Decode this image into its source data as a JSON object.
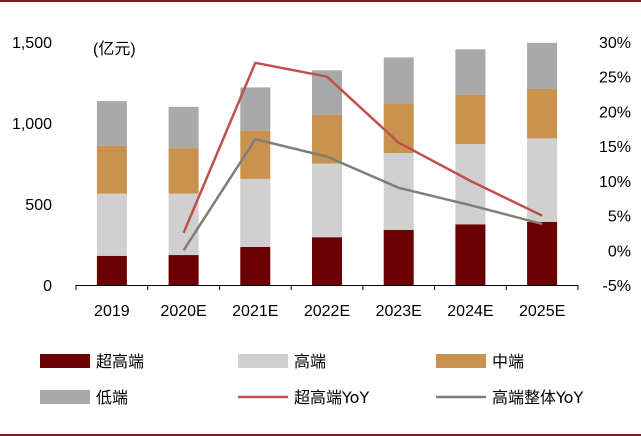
{
  "colors": {
    "frame": "#8b1a1a",
    "super_high": "#6b0000",
    "high": "#d0d0d0",
    "mid": "#c9924f",
    "low": "#a9a9a9",
    "super_high_yoy": "#c0504d",
    "high_total_yoy": "#7f7f74"
  },
  "chart_data": {
    "type": "bar",
    "stacked": true,
    "categories": [
      "2019",
      "2020E",
      "2021E",
      "2022E",
      "2023E",
      "2024E",
      "2025E"
    ],
    "unit_label": "(亿元)",
    "ylim": [
      0,
      1500
    ],
    "yticks": [
      0,
      500,
      1000,
      1500
    ],
    "ytick_labels": [
      "0",
      "500",
      "1,000",
      "1,500"
    ],
    "y2lim": [
      -5,
      30
    ],
    "y2ticks": [
      -5,
      0,
      5,
      10,
      15,
      20,
      25,
      30
    ],
    "y2tick_labels": [
      "-5%",
      "0%",
      "5%",
      "10%",
      "15%",
      "20%",
      "25%",
      "30%"
    ],
    "series": [
      {
        "key": "super_high",
        "name": "超高端",
        "axis": "left",
        "values": [
          180,
          185,
          235,
          295,
          340,
          375,
          390
        ]
      },
      {
        "key": "high",
        "name": "高端",
        "axis": "left",
        "values": [
          385,
          380,
          420,
          455,
          475,
          495,
          515
        ]
      },
      {
        "key": "mid",
        "name": "中端",
        "axis": "left",
        "values": [
          295,
          280,
          300,
          300,
          305,
          305,
          305
        ]
      },
      {
        "key": "low",
        "name": "低端",
        "axis": "left",
        "values": [
          275,
          255,
          265,
          275,
          285,
          280,
          285
        ]
      }
    ],
    "lines": [
      {
        "key": "super_high_yoy",
        "name": "超高端YoY",
        "axis": "right",
        "x_start": 1,
        "values": [
          2.5,
          27.0,
          25.0,
          15.5,
          10.0,
          5.0
        ]
      },
      {
        "key": "high_total_yoy",
        "name": "高端整体YoY",
        "axis": "right",
        "x_start": 1,
        "values": [
          0.0,
          16.0,
          13.5,
          9.0,
          6.5,
          3.8
        ]
      }
    ],
    "legend": {
      "placement": "bottom",
      "items": [
        {
          "key": "super_high",
          "label": "超高端",
          "kind": "box"
        },
        {
          "key": "high",
          "label": "高端",
          "kind": "box"
        },
        {
          "key": "mid",
          "label": "中端",
          "kind": "box"
        },
        {
          "key": "low",
          "label": "低端",
          "kind": "box"
        },
        {
          "key": "super_high_yoy",
          "label": "超高端YoY",
          "kind": "line"
        },
        {
          "key": "high_total_yoy",
          "label": "高端整体YoY",
          "kind": "line"
        }
      ]
    }
  }
}
